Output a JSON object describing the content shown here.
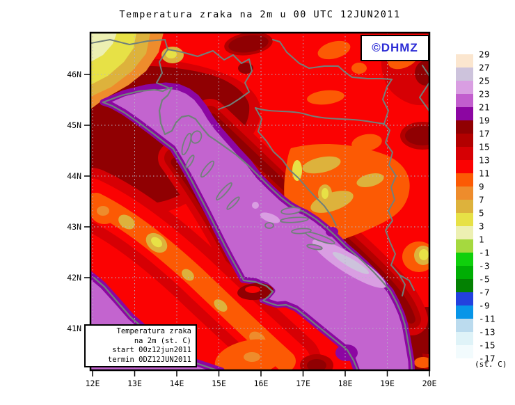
{
  "title": "Temperatura zraka na 2m u 00 UTC 12JUN2011",
  "watermark": {
    "label": "©DHMZ",
    "text_color": "#2b2bd5"
  },
  "info_box": {
    "lines": [
      "Temperatura zraka",
      "na 2m (st. C)",
      "start 00z12jun2011",
      "termin 0DZ12JUN2011"
    ]
  },
  "axes": {
    "lat_ticks": [
      "46N",
      "45N",
      "44N",
      "43N",
      "42N",
      "41N"
    ],
    "lon_ticks": [
      "12E",
      "13E",
      "14E",
      "15E",
      "16E",
      "17E",
      "18E",
      "19E",
      "20E"
    ]
  },
  "legend": {
    "unit": "(st. C)",
    "tick_values": [
      "29",
      "27",
      "25",
      "23",
      "21",
      "19",
      "17",
      "15",
      "13",
      "11",
      "9",
      "7",
      "5",
      "3",
      "1",
      "-1",
      "-3",
      "-5",
      "-7",
      "-9",
      "-11",
      "-13",
      "-15",
      "-17"
    ],
    "band_colors": [
      "#FBE6CF",
      "#CDC3DC",
      "#D99EE2",
      "#C25ECE",
      "#8C06A2",
      "#900002",
      "#B20000",
      "#D60004",
      "#FB0202",
      "#FC5A04",
      "#EE8C2C",
      "#DDB23C",
      "#E7E146",
      "#EDF0B2",
      "#A5D93F",
      "#0FD00C",
      "#00AE04",
      "#038102",
      "#2341DE",
      "#0795E8",
      "#BBDBEE",
      "#DFF3F8",
      "#F2FBFD"
    ]
  },
  "field_palette": {
    "sea_band_21_23": "#C364CF",
    "sea_rim_19_21": "#8C06A2",
    "warm_patch_23_25": "#D99EE2",
    "warm_patch_25_27": "#CDC3DC",
    "base_11_13": "#FB0202",
    "band_13_15": "#D60004",
    "band_15_17": "#B20000",
    "band_17_19": "#900002",
    "band_9_11": "#FC5A04",
    "band_7_9": "#EE8C2C",
    "band_5_7": "#DDB23C",
    "band_3_5": "#E7E146",
    "band_1_3": "#EDF0B2",
    "border_gray": "#71807B"
  }
}
